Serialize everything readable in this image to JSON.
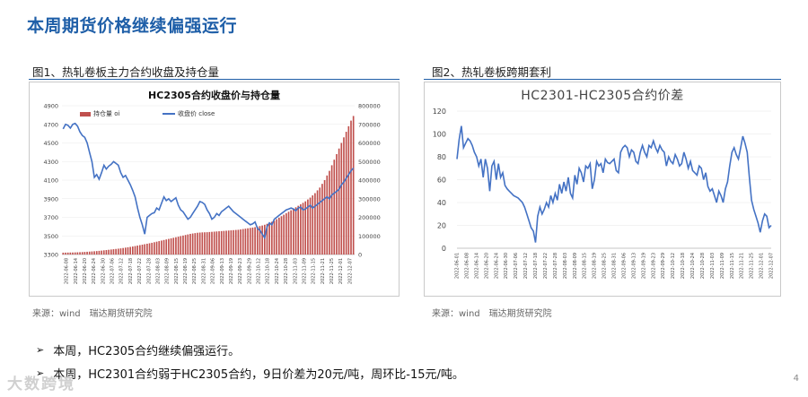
{
  "page": {
    "title": "本周期货价格继续偏强运行",
    "page_number": "4",
    "watermark": "大数跨境"
  },
  "figure1": {
    "caption": "图1、热轧卷板主力合约收盘及持仓量",
    "source": "来源：wind　瑞达期货研究院"
  },
  "figure2": {
    "caption": "图2、热轧卷板跨期套利",
    "source": "来源：wind　瑞达期货研究院"
  },
  "bullets": [
    "本周，HC2305合约继续偏强运行。",
    "本周，HC2301合约弱于HC2305合约，9日价差为20元/吨，周环比-15元/吨。"
  ],
  "chart_data": [
    {
      "type": "bar+line",
      "title": "HC2305合约收盘价与持仓量",
      "legend": [
        "持仓量 oi",
        "收盘价 close"
      ],
      "legend_placement": "top",
      "colors": {
        "oi": "#c0504d",
        "close": "#4472c4"
      },
      "x_ticks": [
        "2022-06-08",
        "2022-06-14",
        "2022-06-20",
        "2022-06-24",
        "2022-06-30",
        "2022-07-06",
        "2022-07-12",
        "2022-07-18",
        "2022-07-22",
        "2022-07-28",
        "2022-08-03",
        "2022-08-09",
        "2022-08-15",
        "2022-08-19",
        "2022-08-25",
        "2022-08-31",
        "2022-09-06",
        "2022-09-13",
        "2022-09-19",
        "2022-09-23",
        "2022-09-29",
        "2022-10-12",
        "2022-10-18",
        "2022-10-24",
        "2022-10-28",
        "2022-11-03",
        "2022-11-09",
        "2022-11-15",
        "2022-11-21",
        "2022-11-25",
        "2022-12-01",
        "2022-12-07"
      ],
      "y_left": {
        "ticks": [
          "3300",
          "3500",
          "3700",
          "3900",
          "4100",
          "4300",
          "4500",
          "4700",
          "4900"
        ],
        "ylim": [
          3300,
          4900
        ]
      },
      "y_right": {
        "ticks": [
          "0",
          "100000",
          "200000",
          "300000",
          "400000",
          "500000",
          "600000",
          "700000",
          "800000"
        ],
        "ylim": [
          0,
          800000
        ]
      },
      "series": [
        {
          "name": "持仓量 oi",
          "kind": "bar",
          "axis": "right",
          "values": [
            10000,
            10200,
            10500,
            10800,
            11000,
            11500,
            12000,
            12600,
            13200,
            14000,
            14800,
            15600,
            16500,
            17500,
            18500,
            19800,
            21000,
            22500,
            24000,
            25500,
            27000,
            28500,
            30000,
            31500,
            33000,
            35000,
            37000,
            39000,
            41000,
            43000,
            45500,
            48000,
            50500,
            53000,
            55500,
            58000,
            60500,
            63000,
            66000,
            69000,
            72000,
            75000,
            78000,
            81000,
            84000,
            87000,
            90000,
            93000,
            96000,
            99000,
            102000,
            105000,
            108000,
            111000,
            113000,
            115000,
            117000,
            118000,
            119000,
            119500,
            120000,
            121000,
            122000,
            123000,
            124000,
            125000,
            126000,
            127000,
            128000,
            129000,
            130000,
            131000,
            132000,
            133000,
            135000,
            137000,
            139000,
            141000,
            143000,
            145000,
            147000,
            150000,
            153000,
            156000,
            160000,
            165000,
            170000,
            176000,
            182000,
            190000,
            198000,
            206000,
            214000,
            222000,
            230000,
            238000,
            246000,
            254000,
            262000,
            270000,
            278000,
            286000,
            296000,
            306000,
            318000,
            330000,
            345000,
            360000,
            380000,
            400000,
            425000,
            450000,
            480000,
            510000,
            540000,
            570000,
            600000,
            630000,
            660000,
            690000,
            720000,
            745000
          ]
        },
        {
          "name": "收盘价 close",
          "kind": "line",
          "axis": "left",
          "values": [
            4650,
            4700,
            4690,
            4660,
            4700,
            4710,
            4680,
            4620,
            4580,
            4560,
            4500,
            4400,
            4300,
            4130,
            4160,
            4110,
            4180,
            4260,
            4220,
            4250,
            4270,
            4300,
            4280,
            4260,
            4180,
            4130,
            4150,
            4100,
            4050,
            3990,
            3920,
            3800,
            3700,
            3620,
            3520,
            3700,
            3720,
            3740,
            3750,
            3800,
            3780,
            3850,
            3920,
            3880,
            3900,
            3870,
            3890,
            3910,
            3830,
            3780,
            3760,
            3720,
            3680,
            3700,
            3740,
            3780,
            3820,
            3870,
            3860,
            3840,
            3780,
            3740,
            3680,
            3700,
            3740,
            3720,
            3760,
            3780,
            3800,
            3820,
            3790,
            3760,
            3740,
            3720,
            3700,
            3680,
            3660,
            3640,
            3620,
            3630,
            3650,
            3580,
            3560,
            3520,
            3480,
            3600,
            3640,
            3620,
            3680,
            3700,
            3720,
            3740,
            3760,
            3780,
            3790,
            3800,
            3790,
            3770,
            3800,
            3810,
            3780,
            3790,
            3810,
            3830,
            3800,
            3820,
            3840,
            3860,
            3880,
            3900,
            3920,
            3900,
            3940,
            3960,
            3980,
            4000,
            4050,
            4080,
            4120,
            4160,
            4200,
            4230
          ]
        }
      ]
    },
    {
      "type": "line",
      "title": "HC2301-HC2305合约价差",
      "color": "#4472c4",
      "x_ticks": [
        "2022-06-01",
        "2022-06-08",
        "2022-06-14",
        "2022-06-20",
        "2022-06-24",
        "2022-06-30",
        "2022-07-06",
        "2022-07-12",
        "2022-07-18",
        "2022-07-22",
        "2022-07-28",
        "2022-08-03",
        "2022-08-09",
        "2022-08-15",
        "2022-08-19",
        "2022-08-25",
        "2022-08-31",
        "2022-09-06",
        "2022-09-13",
        "2022-09-19",
        "2022-09-23",
        "2022-09-29",
        "2022-10-12",
        "2022-10-18",
        "2022-10-24",
        "2022-10-28",
        "2022-11-03",
        "2022-11-09",
        "2022-11-15",
        "2022-11-21",
        "2022-11-25",
        "2022-12-01",
        "2022-12-07"
      ],
      "y_ticks": [
        "0",
        "20",
        "40",
        "60",
        "80",
        "100",
        "120"
      ],
      "ylim": [
        0,
        120
      ],
      "series": [
        {
          "values": [
            78,
            95,
            107,
            88,
            92,
            96,
            94,
            90,
            84,
            80,
            72,
            78,
            62,
            78,
            70,
            50,
            72,
            76,
            60,
            74,
            62,
            66,
            55,
            52,
            50,
            48,
            46,
            45,
            44,
            42,
            40,
            36,
            30,
            24,
            18,
            15,
            5,
            28,
            36,
            30,
            34,
            40,
            36,
            46,
            40,
            48,
            42,
            56,
            48,
            58,
            50,
            62,
            48,
            44,
            64,
            56,
            70,
            66,
            58,
            72,
            70,
            74,
            52,
            60,
            76,
            72,
            74,
            66,
            78,
            75,
            74,
            76,
            78,
            68,
            66,
            84,
            88,
            90,
            88,
            80,
            86,
            84,
            76,
            74,
            84,
            90,
            84,
            80,
            90,
            88,
            94,
            88,
            84,
            90,
            86,
            84,
            72,
            80,
            76,
            74,
            82,
            78,
            72,
            74,
            84,
            78,
            70,
            76,
            68,
            66,
            64,
            72,
            70,
            60,
            66,
            54,
            50,
            52,
            46,
            40,
            50,
            46,
            40,
            52,
            58,
            72,
            84,
            88,
            82,
            78,
            88,
            98,
            92,
            84,
            62,
            42,
            34,
            28,
            22,
            14,
            24,
            30,
            28,
            18,
            20
          ]
        }
      ]
    }
  ]
}
